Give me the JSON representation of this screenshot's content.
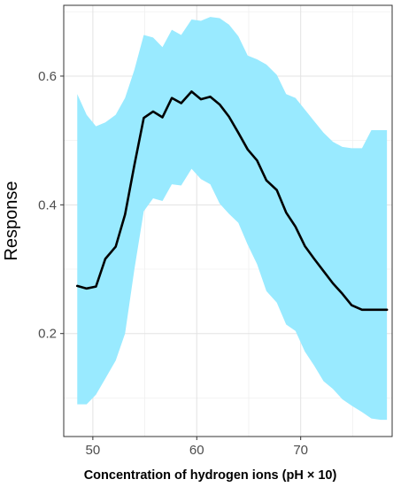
{
  "chart_data": {
    "type": "line",
    "title": "",
    "xlabel": "Concentration of hydrogen ions (pH × 10)",
    "ylabel": "Response",
    "xlim": [
      47.2,
      78.8
    ],
    "ylim": [
      0.04,
      0.71
    ],
    "x_ticks": [
      50,
      60,
      70
    ],
    "x_tick_labels": [
      "50",
      "60",
      "70"
    ],
    "y_ticks": [
      0.2,
      0.4,
      0.6
    ],
    "y_tick_labels": [
      "0.2",
      "0.4",
      "0.6"
    ],
    "grid": true,
    "band_color": "#99eaff",
    "line_color": "#000000",
    "series": [
      {
        "x": [
          48.5,
          49.4,
          50.3,
          51.2,
          52.2,
          53.1,
          54.0,
          54.9,
          55.8,
          56.7,
          57.6,
          58.5,
          59.5,
          60.4,
          61.3,
          62.2,
          63.1,
          64.0,
          64.9,
          65.8,
          66.7,
          67.7,
          68.6,
          69.5,
          70.4,
          71.3,
          72.2,
          73.1,
          74.0,
          74.9,
          75.9,
          76.8,
          77.7,
          78.3
        ],
        "y": [
          0.274,
          0.27,
          0.273,
          0.316,
          0.335,
          0.385,
          0.462,
          0.535,
          0.545,
          0.536,
          0.566,
          0.558,
          0.576,
          0.564,
          0.568,
          0.556,
          0.537,
          0.512,
          0.486,
          0.469,
          0.438,
          0.423,
          0.388,
          0.366,
          0.336,
          0.316,
          0.297,
          0.278,
          0.262,
          0.244,
          0.237,
          0.237,
          0.237,
          0.237
        ],
        "lower": [
          0.09,
          0.09,
          0.105,
          0.13,
          0.158,
          0.2,
          0.3,
          0.39,
          0.41,
          0.406,
          0.432,
          0.43,
          0.456,
          0.44,
          0.432,
          0.402,
          0.386,
          0.372,
          0.338,
          0.308,
          0.266,
          0.248,
          0.214,
          0.204,
          0.172,
          0.15,
          0.126,
          0.114,
          0.098,
          0.088,
          0.078,
          0.068,
          0.066,
          0.066
        ],
        "upper": [
          0.572,
          0.54,
          0.522,
          0.528,
          0.54,
          0.566,
          0.61,
          0.664,
          0.66,
          0.645,
          0.672,
          0.664,
          0.688,
          0.686,
          0.692,
          0.69,
          0.68,
          0.662,
          0.632,
          0.626,
          0.618,
          0.602,
          0.572,
          0.566,
          0.548,
          0.53,
          0.512,
          0.498,
          0.49,
          0.488,
          0.488,
          0.516,
          0.516,
          0.516
        ]
      }
    ]
  }
}
